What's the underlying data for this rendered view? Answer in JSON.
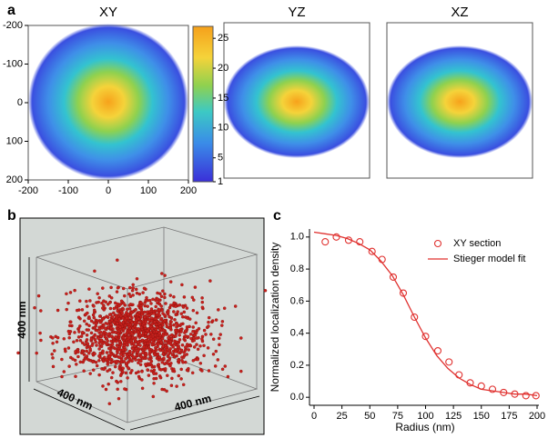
{
  "figure": {
    "panel_labels": [
      "a",
      "b",
      "c"
    ],
    "maps": [
      {
        "title": "XY",
        "xlim": [
          -200,
          200
        ],
        "ylim": [
          200,
          -200
        ],
        "xticks": [
          -200,
          -100,
          0,
          100,
          200
        ],
        "yticks": [
          -200,
          -100,
          0,
          100,
          200
        ]
      },
      {
        "title": "YZ"
      },
      {
        "title": "XZ"
      }
    ],
    "colorbar": {
      "lim": [
        1,
        27
      ],
      "ticks": [
        1,
        5,
        10,
        15,
        20,
        25
      ]
    },
    "cube_labels": [
      "400 nm",
      "400 nm",
      "400 nm"
    ]
  },
  "chart_data": {
    "type": "line",
    "xlabel": "Radius (nm)",
    "ylabel": "Normalized localization density",
    "xlim": [
      0,
      200
    ],
    "ylim": [
      -0.05,
      1.05
    ],
    "xticks": [
      0,
      25,
      50,
      75,
      100,
      125,
      150,
      175,
      200
    ],
    "yticks": [
      {
        "value": 0,
        "label": "0.0"
      },
      0.2,
      0.4,
      0.6,
      0.8,
      {
        "value": 1,
        "label": "1.0"
      }
    ],
    "legend": "upper right",
    "series": [
      {
        "name": "XY section",
        "kind": "scatter",
        "color": "#e0312f",
        "x": [
          10,
          20,
          31,
          41,
          52,
          61,
          71,
          80,
          90,
          100,
          111,
          121,
          130,
          140,
          150,
          160,
          170,
          180,
          190,
          199
        ],
        "values": [
          0.97,
          1.0,
          0.98,
          0.97,
          0.91,
          0.86,
          0.75,
          0.65,
          0.5,
          0.38,
          0.29,
          0.22,
          0.14,
          0.09,
          0.07,
          0.05,
          0.03,
          0.02,
          0.01,
          0.01
        ]
      },
      {
        "name": "Stieger model fit",
        "kind": "line",
        "color": "#e0312f",
        "x": [
          0,
          10,
          20,
          30,
          40,
          50,
          60,
          70,
          80,
          90,
          100,
          110,
          120,
          130,
          140,
          150,
          160,
          170,
          180,
          190,
          200
        ],
        "values": [
          1.03,
          1.02,
          1.01,
          0.99,
          0.96,
          0.92,
          0.85,
          0.76,
          0.64,
          0.5,
          0.37,
          0.26,
          0.18,
          0.12,
          0.08,
          0.05,
          0.04,
          0.03,
          0.02,
          0.02,
          0.01
        ]
      }
    ]
  }
}
